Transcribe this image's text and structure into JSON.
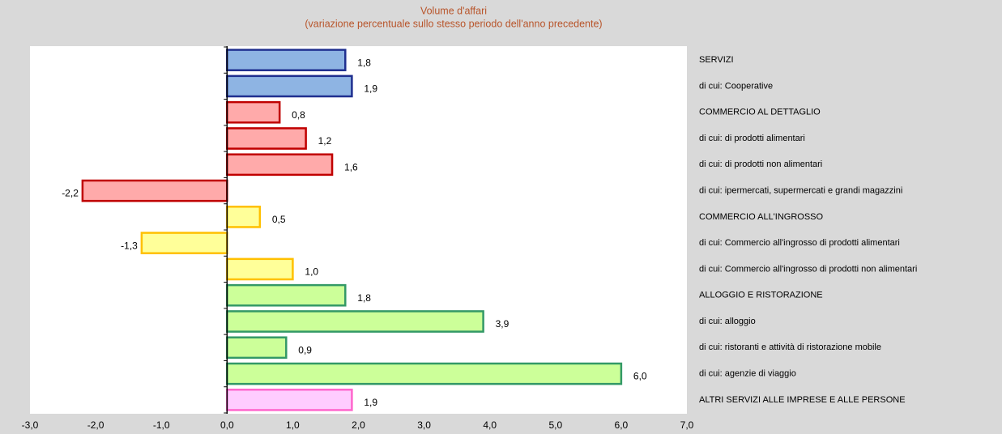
{
  "chart_data": {
    "type": "hbar",
    "title": "Volume d'affari",
    "subtitle": "(variazione percentuale sullo stesso periodo dell'anno precedente)",
    "categories": [
      "SERVIZI",
      "di cui: Cooperative",
      "COMMERCIO AL DETTAGLIO",
      "di cui: di prodotti alimentari",
      "di cui: di prodotti non alimentari",
      "di cui: ipermercati, supermercati e grandi magazzini",
      "COMMERCIO ALL'INGROSSO",
      "di cui: Commercio all'ingrosso di prodotti alimentari",
      "di cui: Commercio all'ingrosso di prodotti non alimentari",
      "ALLOGGIO E RISTORAZIONE",
      "di cui: alloggio",
      "di cui: ristoranti e attività di ristorazione mobile",
      "di cui: agenzie di viaggio",
      "ALTRI SERVIZI ALLE IMPRESE E ALLE PERSONE"
    ],
    "values": [
      1.8,
      1.9,
      0.8,
      1.2,
      1.6,
      -2.2,
      0.5,
      -1.3,
      1.0,
      1.8,
      3.9,
      0.9,
      6.0,
      1.9
    ],
    "value_labels": [
      "1,8",
      "1,9",
      "0,8",
      "1,2",
      "1,6",
      "-2,2",
      "0,5",
      "-1,3",
      "1,0",
      "1,8",
      "3,9",
      "0,9",
      "6,0",
      "1,9"
    ],
    "colors": [
      "#8eb4e3",
      "#8eb4e3",
      "#ffaaaa",
      "#ffaaaa",
      "#ffaaaa",
      "#ffaaaa",
      "#ffff99",
      "#ffff99",
      "#ffff99",
      "#ccff99",
      "#ccff99",
      "#ccff99",
      "#ccff99",
      "#ffccff"
    ],
    "edge_colors": [
      "#1f2f8f",
      "#1f2f8f",
      "#c00000",
      "#c00000",
      "#c00000",
      "#c00000",
      "#ffc000",
      "#ffc000",
      "#ffc000",
      "#339966",
      "#339966",
      "#339966",
      "#339966",
      "#ff66cc"
    ],
    "negative_label_color": "#e00000",
    "xlim": [
      -3.0,
      7.0
    ],
    "xticks": [
      {
        "value": -3,
        "label": "-3,0"
      },
      {
        "value": -2,
        "label": "-2,0"
      },
      {
        "value": -1,
        "label": "-1,0"
      },
      {
        "value": 0,
        "label": "0,0"
      },
      {
        "value": 1,
        "label": "1,0"
      },
      {
        "value": 2,
        "label": "2,0"
      },
      {
        "value": 3,
        "label": "3,0"
      },
      {
        "value": 4,
        "label": "4,0"
      },
      {
        "value": 5,
        "label": "5,0"
      },
      {
        "value": 6,
        "label": "6,0"
      },
      {
        "value": 7,
        "label": "7,0"
      }
    ]
  }
}
